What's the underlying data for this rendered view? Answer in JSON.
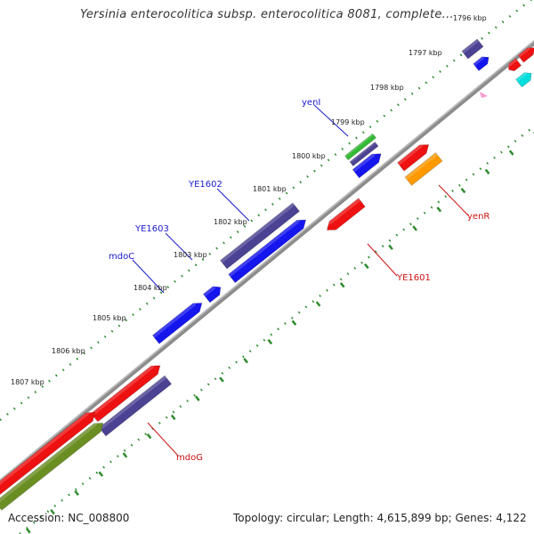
{
  "title": "Yersinia enterocolitica subsp. enterocolitica 8081, complete...",
  "footer": {
    "accession": "Accession: NC_008800",
    "summary": "Topology: circular; Length: 4,615,899 bp; Genes: 4,122"
  },
  "colors": {
    "backbone": "#8c8c8c",
    "tick_dots": "#2e8b2e",
    "label_top": "#1a1acc",
    "label_bottom": "#cc1111",
    "navy": "#4b4293",
    "blue": "#1515ee",
    "red": "#ee1111",
    "olive": "#6b8e23",
    "green": "#33bb33",
    "orange": "#ff9900",
    "cyan": "#00dddd",
    "pink": "#ff99cc"
  },
  "kbp_ticks": [
    "1796 kbp",
    "1797 kbp",
    "1798 kbp",
    "1799 kbp",
    "1800 kbp",
    "1801 kbp",
    "1802 kbp",
    "1803 kbp",
    "1804 kbp",
    "1805 kbp",
    "1806 kbp",
    "1807 kbp"
  ],
  "gene_labels": {
    "top": [
      "yenI",
      "YE1602",
      "YE1603",
      "mdoC"
    ],
    "bottom": [
      "yenR",
      "YE1601",
      "mdoG"
    ]
  }
}
